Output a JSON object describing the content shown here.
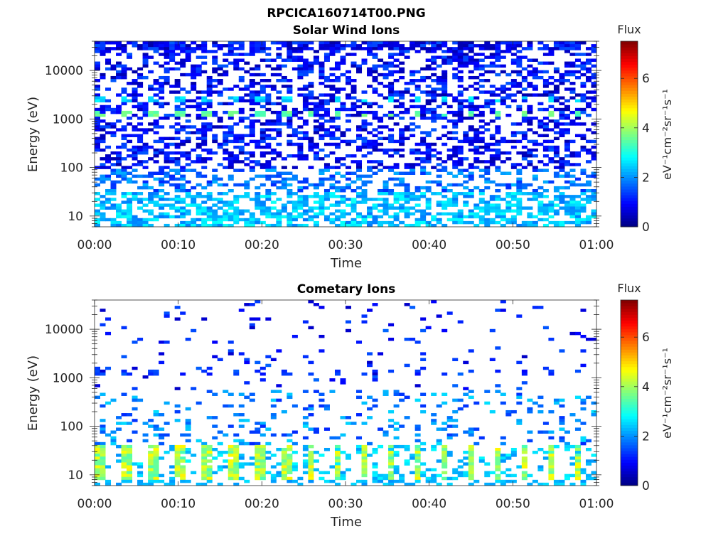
{
  "figure_title": "RPCICA160714T00.PNG",
  "colors": {
    "colormap": "jet",
    "axis": "#262626",
    "background": "#ffffff"
  },
  "chart_data": [
    {
      "type": "heatmap",
      "title": "Solar Wind Ions",
      "xlabel": "Time",
      "ylabel": "Energy (eV)",
      "xticks": [
        "00:00",
        "00:10",
        "00:20",
        "00:30",
        "00:40",
        "00:50",
        "01:00"
      ],
      "xlim_minutes": [
        0,
        60
      ],
      "yscale": "log",
      "ylim": [
        6,
        40000
      ],
      "yticks": [
        {
          "value": 10,
          "label": "10"
        },
        {
          "value": 100,
          "label": "100"
        },
        {
          "value": 1000,
          "label": "1000"
        },
        {
          "value": 10000,
          "label": "10000"
        }
      ],
      "colorbar": {
        "title": "Flux",
        "label": "eV⁻¹cm⁻²sr⁻¹s⁻¹",
        "range": [
          0,
          7.5
        ],
        "ticks": [
          0,
          2,
          4,
          6
        ]
      },
      "pattern": "dense scattered dark-blue flux (~0.5-1.5) across 100-40000 eV; cyan-green peaks (~3.5) near 1200 eV and ~2.5 near 2500 eV every ~3.2 min; light-blue/cyan (~2-2.8) below 60 eV"
    },
    {
      "type": "heatmap",
      "title": "Cometary Ions",
      "xlabel": "Time",
      "ylabel": "Energy (eV)",
      "xticks": [
        "00:00",
        "00:10",
        "00:20",
        "00:30",
        "00:40",
        "00:50",
        "01:00"
      ],
      "xlim_minutes": [
        0,
        60
      ],
      "yscale": "log",
      "ylim": [
        6,
        40000
      ],
      "yticks": [
        {
          "value": 10,
          "label": "10"
        },
        {
          "value": 100,
          "label": "100"
        },
        {
          "value": 1000,
          "label": "1000"
        },
        {
          "value": 10000,
          "label": "10000"
        }
      ],
      "colorbar": {
        "title": "Flux",
        "label": "eV⁻¹cm⁻²sr⁻¹s⁻¹",
        "range": [
          0,
          7.5
        ],
        "ticks": [
          0,
          2,
          4,
          6
        ]
      },
      "pattern": "sparse flux above 30 eV (~1-2.5); periodic green-yellow bursts (~3.5-4.8) at 8-20 eV every ~3.2 min"
    }
  ]
}
